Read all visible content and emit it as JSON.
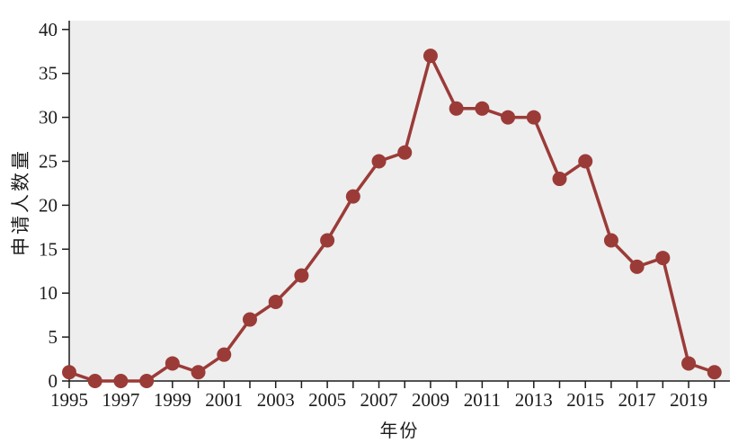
{
  "chart_data": {
    "type": "line",
    "title": "",
    "xlabel": "年份",
    "ylabel": "申请人数量",
    "x": [
      1995,
      1996,
      1997,
      1998,
      1999,
      2000,
      2001,
      2002,
      2003,
      2004,
      2005,
      2006,
      2007,
      2008,
      2009,
      2010,
      2011,
      2012,
      2013,
      2014,
      2015,
      2016,
      2017,
      2018,
      2019,
      2020
    ],
    "values": [
      1,
      0,
      0,
      0,
      2,
      1,
      3,
      7,
      9,
      12,
      16,
      21,
      25,
      26,
      37,
      31,
      31,
      30,
      30,
      23,
      25,
      16,
      13,
      14,
      2,
      1
    ],
    "xticks": [
      1995,
      1997,
      1999,
      2001,
      2003,
      2005,
      2007,
      2009,
      2011,
      2013,
      2015,
      2017,
      2019
    ],
    "yticks": [
      0,
      5,
      10,
      15,
      20,
      25,
      30,
      35,
      40
    ],
    "xlim": [
      1995,
      2020.6
    ],
    "ylim": [
      0,
      41
    ],
    "grid": false,
    "legend": "none",
    "marker": "circle",
    "line_color": "#9b3b38",
    "plot_bg_color": "#eeeeee",
    "axis_color": "#1c1c1c"
  }
}
